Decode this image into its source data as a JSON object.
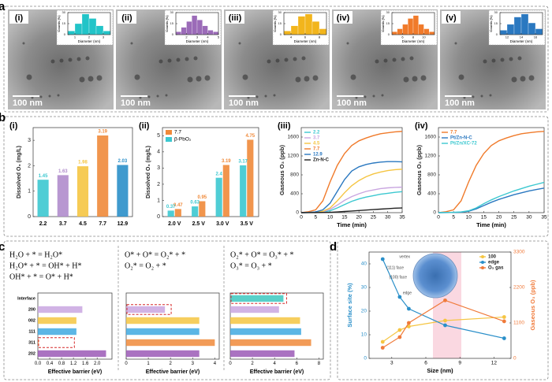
{
  "panel_labels": [
    "a",
    "b",
    "c",
    "d"
  ],
  "scale_bar": "100 nm",
  "chart_data": [
    {
      "type": "histogram",
      "label": "(i)",
      "xlabel": "Diameter (nm)",
      "ylabel": "Counts (%)",
      "color": "#22c4c8",
      "bins": [
        0.5,
        1,
        1.5,
        2,
        2.5,
        3,
        3.5
      ],
      "counts": [
        5,
        15,
        28,
        22,
        12,
        5
      ],
      "xlim": [
        0.5,
        3.5
      ],
      "xticks": [
        1,
        2,
        3
      ],
      "ylim": [
        0,
        30
      ],
      "yticks": [
        0,
        15,
        30
      ]
    },
    {
      "type": "histogram",
      "label": "(ii)",
      "xlabel": "Diameter (nm)",
      "ylabel": "Counts (%)",
      "color": "#9b6bb8",
      "bins": [
        1,
        1.5,
        2,
        2.5,
        3,
        3.5,
        4,
        4.5,
        5
      ],
      "counts": [
        4,
        10,
        18,
        26,
        20,
        12,
        6,
        4
      ],
      "xlim": [
        1,
        5
      ],
      "xticks": [
        2,
        3,
        4,
        5
      ],
      "ylim": [
        0,
        30
      ],
      "yticks": [
        0,
        15,
        30
      ]
    },
    {
      "type": "histogram",
      "label": "(iii)",
      "xlabel": "Diameter (nm)",
      "ylabel": "Counts (%)",
      "color": "#f2b51c",
      "bins": [
        3,
        4,
        5,
        6,
        7,
        8,
        9
      ],
      "counts": [
        5,
        12,
        25,
        28,
        18,
        8
      ],
      "xlim": [
        3,
        9
      ],
      "xticks": [
        4,
        6,
        8
      ],
      "ylim": [
        0,
        30
      ],
      "yticks": [
        0,
        15,
        30
      ]
    },
    {
      "type": "histogram",
      "label": "(iv)",
      "xlabel": "Diameter (nm)",
      "ylabel": "Counts (%)",
      "color": "#f07a2a",
      "bins": [
        4,
        5,
        6,
        7,
        8,
        9,
        10,
        11,
        12
      ],
      "counts": [
        4,
        8,
        14,
        22,
        26,
        14,
        8,
        4
      ],
      "xlim": [
        4,
        12
      ],
      "xticks": [
        6,
        8,
        10
      ],
      "ylim": [
        0,
        30
      ],
      "yticks": [
        0,
        15,
        30
      ]
    },
    {
      "type": "histogram",
      "label": "(v)",
      "xlabel": "Diameter (nm)",
      "ylabel": "Counts (%)",
      "color": "#2a78c0",
      "bins": [
        11,
        12,
        13,
        14,
        15,
        16,
        17
      ],
      "counts": [
        6,
        14,
        24,
        28,
        16,
        8
      ],
      "xlim": [
        11,
        17
      ],
      "xticks": [
        12,
        14,
        16
      ],
      "ylim": [
        0,
        30
      ],
      "yticks": [
        0,
        15,
        30
      ]
    },
    {
      "type": "bar",
      "label": "(i)",
      "ylabel": "Dissolved O₃ (mg/L)",
      "categories": [
        "2.2",
        "3.7",
        "4.5",
        "7.7",
        "12.9"
      ],
      "values": [
        1.45,
        1.63,
        1.98,
        3.19,
        2.03
      ],
      "colors": [
        "#3cc8d0",
        "#b08ccc",
        "#f5c542",
        "#f08a3a",
        "#2a8fc9"
      ],
      "ylim": [
        0,
        3.5
      ],
      "yticks": [
        0,
        1,
        2,
        3
      ]
    },
    {
      "type": "bar",
      "label": "(ii)",
      "ylabel": "Dissolved O₃ (mg/L)",
      "categories": [
        "2.0 V",
        "2.5 V",
        "3.0 V",
        "3.5 V"
      ],
      "series": [
        {
          "name": "7.7",
          "color": "#f08a3a",
          "values": [
            0.47,
            0.95,
            3.19,
            4.75
          ]
        },
        {
          "name": "β-PbO₂",
          "color": "#3cc8d0",
          "values": [
            0.37,
            0.63,
            2.4,
            3.17
          ]
        }
      ],
      "legend": "upper left",
      "ylim": [
        0,
        5.5
      ],
      "yticks": [
        0,
        1,
        2,
        3,
        4,
        5
      ]
    },
    {
      "type": "line",
      "label": "(iii)",
      "xlabel": "Time (min)",
      "ylabel": "Gaseous O₃ (ppb)",
      "x": [
        0,
        2.5,
        5,
        7.5,
        10,
        12.5,
        15,
        17.5,
        20,
        22.5,
        25,
        27.5,
        30,
        32.5,
        35
      ],
      "series": [
        {
          "name": "2.2",
          "color": "#3cc8d0",
          "values": [
            0,
            2,
            5,
            15,
            40,
            100,
            170,
            240,
            290,
            330,
            360,
            390,
            410,
            430,
            445
          ]
        },
        {
          "name": "3.7",
          "color": "#c9a6e0",
          "values": [
            0,
            3,
            8,
            20,
            70,
            160,
            260,
            340,
            400,
            450,
            480,
            510,
            525,
            535,
            540
          ]
        },
        {
          "name": "4.5",
          "color": "#f5c542",
          "values": [
            0,
            5,
            10,
            30,
            100,
            250,
            420,
            570,
            680,
            760,
            820,
            860,
            890,
            910,
            920
          ]
        },
        {
          "name": "7.7",
          "color": "#f07a2a",
          "values": [
            0,
            20,
            60,
            250,
            650,
            1000,
            1250,
            1420,
            1520,
            1580,
            1630,
            1670,
            1690,
            1710,
            1720
          ]
        },
        {
          "name": "12.9",
          "color": "#2a78c0",
          "values": [
            0,
            5,
            15,
            60,
            200,
            450,
            700,
            880,
            970,
            1020,
            1050,
            1070,
            1080,
            1080,
            1075
          ]
        },
        {
          "name": "Zn-N-C",
          "color": "#222222",
          "values": [
            0,
            1,
            2,
            4,
            8,
            15,
            25,
            35,
            45,
            55,
            65,
            75,
            85,
            95,
            100
          ]
        }
      ],
      "xlim": [
        0,
        35
      ],
      "xticks": [
        0,
        5,
        10,
        15,
        20,
        25,
        30,
        35
      ],
      "ylim": [
        0,
        1800
      ],
      "yticks": [
        0,
        400,
        800,
        1200,
        1600
      ],
      "legend": "upper left"
    },
    {
      "type": "line",
      "label": "(iv)",
      "xlabel": "Time (min)",
      "ylabel": "Gaseous O₃ (ppb)",
      "x": [
        0,
        2.5,
        5,
        7.5,
        10,
        12.5,
        15,
        17.5,
        20,
        22.5,
        25,
        27.5,
        30,
        32.5,
        35
      ],
      "series": [
        {
          "name": "7.7",
          "color": "#f07a2a",
          "values": [
            0,
            20,
            60,
            250,
            650,
            1000,
            1250,
            1420,
            1520,
            1580,
            1630,
            1670,
            1690,
            1710,
            1720
          ]
        },
        {
          "name": "Pt/Zn-N-C",
          "color": "#2a78c0",
          "values": [
            0,
            2,
            5,
            10,
            30,
            80,
            150,
            220,
            280,
            330,
            380,
            420,
            460,
            490,
            520
          ]
        },
        {
          "name": "Pt/Zn/XC-72",
          "color": "#3cc8d0",
          "values": [
            0,
            3,
            8,
            15,
            40,
            100,
            190,
            270,
            340,
            400,
            460,
            510,
            560,
            600,
            640
          ]
        }
      ],
      "xlim": [
        0,
        35
      ],
      "xticks": [
        0,
        5,
        10,
        15,
        20,
        25,
        30,
        35
      ],
      "ylim": [
        0,
        1800
      ],
      "yticks": [
        0,
        400,
        800,
        1200,
        1600
      ],
      "legend": "upper left"
    },
    {
      "type": "hbar_group",
      "equations": [
        [
          "H₂O + * = H₂O*",
          "H₂O* + * = OH* + H*",
          "OH* + * = O* + H*"
        ],
        [
          "O* + O* = O₂* + *",
          "O₂* = O₂ + *"
        ],
        [
          "O₂* + O* = O₃* + *",
          "O₃* = O₃ + *"
        ]
      ],
      "xlabel": "Effective barrier (eV)",
      "categories": [
        "Interface",
        "200",
        "002",
        "111",
        "311",
        "202"
      ],
      "colors": [
        "#3cc8c0",
        "#c9a6e0",
        "#f5c542",
        "#3fa9e0",
        "#f08a3a",
        "#9b59b6"
      ],
      "panels": [
        {
          "xlim": [
            0,
            2.5
          ],
          "xticks": [
            {
              "value": 0,
              "label": "0.0"
            },
            0.4,
            0.8,
            1.2,
            1.6,
            {
              "value": 2,
              "label": "2.0"
            }
          ],
          "values": [
            null,
            1.5,
            1.3,
            1.3,
            0.02,
            2.3
          ]
        },
        {
          "xlim": [
            0,
            4.2
          ],
          "xticks": [
            0,
            1,
            2,
            3,
            4
          ],
          "values": [
            null,
            1.75,
            3.3,
            3.3,
            4.0,
            3.3
          ]
        },
        {
          "xlim": [
            0,
            8.4
          ],
          "xticks": [
            0,
            2,
            4,
            6,
            8
          ],
          "values": [
            4.8,
            4.4,
            6.3,
            6.4,
            7.3,
            5.8
          ]
        }
      ]
    },
    {
      "type": "line",
      "xlabel": "Size (nm)",
      "ylabel": "Surface site (%)",
      "y2label": "Gaseous O₃ (ppb)",
      "x": [
        2.2,
        3.7,
        4.5,
        7.7,
        12.9
      ],
      "series": [
        {
          "name": "100",
          "color": "#f5c542",
          "values": [
            7,
            12,
            13.5,
            16,
            17.5
          ]
        },
        {
          "name": "edge",
          "color": "#2a8fc9",
          "values": [
            42,
            26,
            21,
            14,
            8.5
          ]
        },
        {
          "name": "O₃ gas",
          "color": "#f07a3a",
          "axis": "y2",
          "values": [
            330,
            660,
            1100,
            1800,
            1150
          ]
        }
      ],
      "xlim": [
        1,
        13.5
      ],
      "xticks": [
        3,
        6,
        9,
        12
      ],
      "ylim": [
        0,
        45
      ],
      "yticks": [
        0,
        10,
        20,
        30,
        40
      ],
      "y2lim": [
        0,
        3300
      ],
      "y2ticks": [
        0,
        1100,
        2200,
        3300
      ],
      "legend": "upper right",
      "markers": true,
      "inset_labels": [
        "vertex",
        "(111) face",
        "(100) face",
        "edge"
      ]
    }
  ]
}
